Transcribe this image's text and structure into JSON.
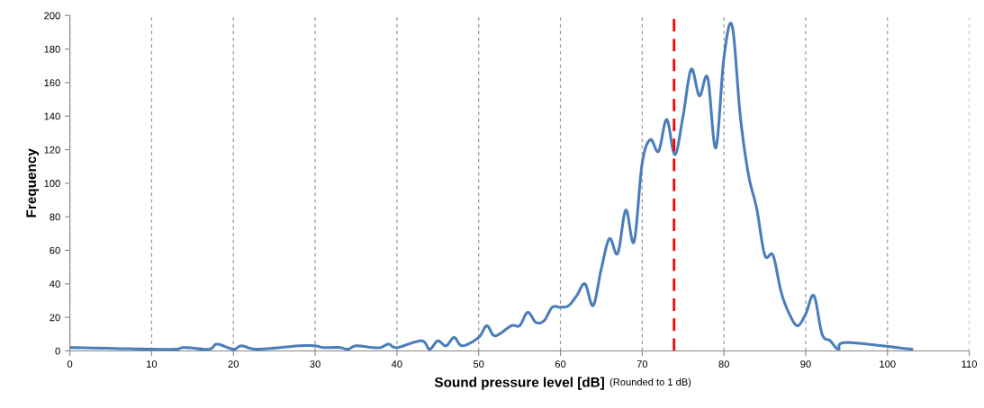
{
  "chart_data": {
    "type": "line",
    "xlabel": "Sound pressure level [dB]",
    "ylabel": "Frequency",
    "annotations": [
      "(Rounded to 1 dB)"
    ],
    "x": [
      0,
      10,
      13,
      14,
      17,
      18,
      20,
      21,
      23,
      28,
      30,
      31,
      33,
      34,
      35,
      37,
      38,
      39,
      40,
      43,
      44,
      45,
      46,
      47,
      48,
      50,
      51,
      52,
      54,
      55,
      56,
      57,
      58,
      59,
      60,
      61,
      62,
      63,
      64,
      65,
      66,
      67,
      68,
      69,
      70,
      71,
      72,
      73,
      74,
      75,
      76,
      77,
      78,
      79,
      80,
      81,
      82,
      83,
      84,
      85,
      86,
      87,
      88,
      89,
      90,
      91,
      92,
      93,
      94,
      95,
      103
    ],
    "series": [
      {
        "color": "#4a7ebb",
        "values": [
          2,
          1,
          1,
          2,
          1,
          4,
          1,
          3,
          1,
          3,
          3,
          2,
          2,
          1,
          3,
          2,
          2,
          4,
          2,
          6,
          1,
          6,
          3,
          8,
          3,
          8,
          15,
          9,
          15,
          15,
          23,
          17,
          18,
          26,
          26,
          27,
          33,
          40,
          27,
          49,
          67,
          58,
          84,
          65,
          112,
          126,
          119,
          138,
          117,
          140,
          168,
          152,
          163,
          121,
          175,
          194,
          140,
          105,
          85,
          57,
          57,
          35,
          22,
          15,
          22,
          33,
          10,
          6,
          1,
          5,
          1
        ]
      }
    ],
    "xlim": [
      0,
      110
    ],
    "xticks": [
      0,
      10,
      20,
      30,
      40,
      50,
      60,
      70,
      80,
      90,
      100,
      110
    ],
    "ylim": [
      0,
      200
    ],
    "yticks": [
      0,
      20,
      40,
      60,
      80,
      100,
      120,
      140,
      160,
      180,
      200
    ],
    "grid": "x",
    "line_style": "solid",
    "marker": "none",
    "legend": false,
    "ref_lines": [
      {
        "axis": "x",
        "value": 73.9,
        "color": "#ff0000",
        "line_style": "dashed"
      }
    ]
  }
}
